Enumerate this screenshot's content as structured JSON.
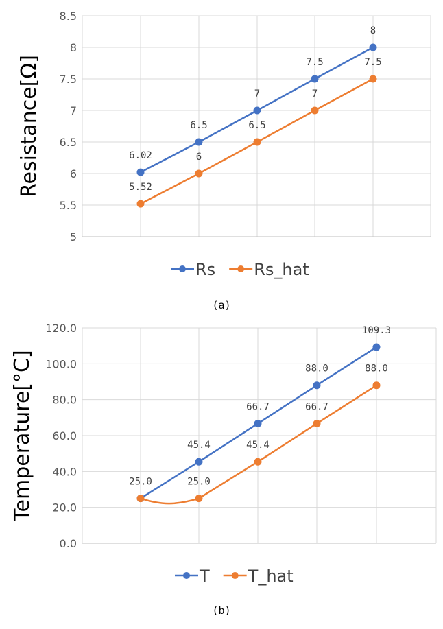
{
  "chart_data": [
    {
      "type": "line",
      "ylabel": "Resistance[Ω]",
      "ylim": [
        5,
        8.5
      ],
      "ytick_labels": [
        "5",
        "5.5",
        "6",
        "6.5",
        "7",
        "7.5",
        "8",
        "8.5"
      ],
      "grid": true,
      "legend_position": "bottom",
      "caption": "(a)",
      "series": [
        {
          "name": "Rs",
          "color": "#4472C4",
          "values": [
            6.02,
            6.5,
            7,
            7.5,
            8
          ],
          "labels": [
            "6.02",
            "6.5",
            "7",
            "7.5",
            "8"
          ]
        },
        {
          "name": "Rs_hat",
          "color": "#ED7D31",
          "values": [
            5.52,
            6,
            6.5,
            7,
            7.5
          ],
          "labels": [
            "5.52",
            "6",
            "6.5",
            "7",
            "7.5"
          ]
        }
      ]
    },
    {
      "type": "line",
      "ylabel": "Temperature[°C]",
      "ylim": [
        0,
        120
      ],
      "ytick_labels": [
        "0.0",
        "20.0",
        "40.0",
        "60.0",
        "80.0",
        "100.0",
        "120.0"
      ],
      "grid": true,
      "legend_position": "bottom",
      "caption": "(b)",
      "series": [
        {
          "name": "T",
          "color": "#4472C4",
          "values": [
            25.0,
            45.4,
            66.7,
            88.0,
            109.3
          ],
          "labels": [
            "25.0",
            "45.4",
            "66.7",
            "88.0",
            "109.3"
          ]
        },
        {
          "name": "T_hat",
          "color": "#ED7D31",
          "values": [
            25.0,
            25.0,
            45.4,
            66.7,
            88.0
          ],
          "labels": [
            "",
            "25.0",
            "45.4",
            "66.7",
            "88.0"
          ]
        }
      ]
    }
  ]
}
